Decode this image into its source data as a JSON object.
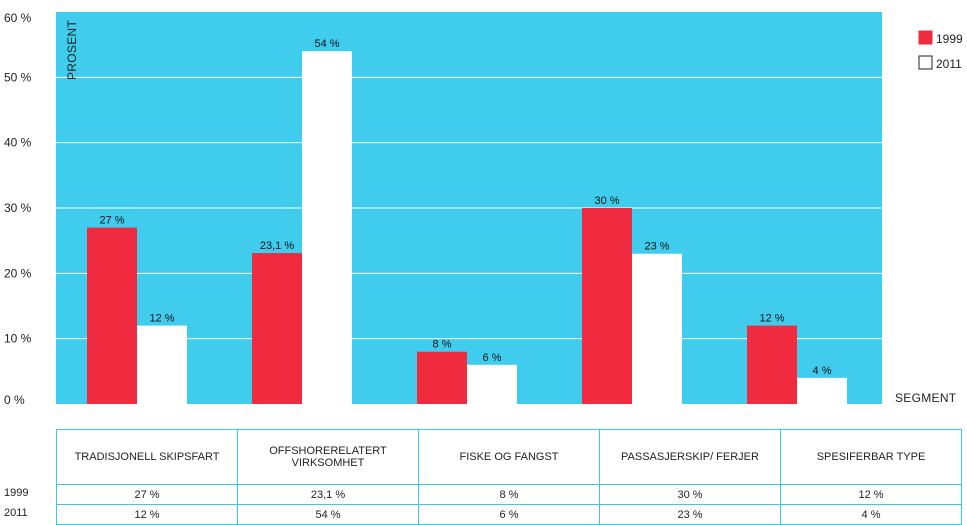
{
  "colors": {
    "plot_bg": "#40ccec",
    "bar_1999": "#f02a3f",
    "bar_2011": "#ffffff",
    "grid": "#ffffff",
    "table_border": "#3ec8e8"
  },
  "chart_data": {
    "type": "bar",
    "ylabel": "PROSENT",
    "xlabel": "SEGMENT",
    "ylim": [
      0,
      60
    ],
    "y_ticks": [
      0,
      10,
      20,
      30,
      40,
      50,
      60
    ],
    "y_tick_labels": [
      "0 %",
      "10 %",
      "20 %",
      "30 %",
      "40 %",
      "50 %",
      "60 %"
    ],
    "grid": true,
    "legend_position": "top-right",
    "categories": [
      "TRADISJONELL SKIPSFART",
      "OFFSHORERELATERT VIRKSOMHET",
      "FISKE OG FANGST",
      "PASSASJERSKIP/ FERJER",
      "SPESIFERBAR TYPE"
    ],
    "series": [
      {
        "name": "1999",
        "values": [
          27,
          23.1,
          8,
          30,
          12
        ],
        "labels": [
          "27 %",
          "23,1 %",
          "8 %",
          "30 %",
          "12 %"
        ]
      },
      {
        "name": "2011",
        "values": [
          12,
          54,
          6,
          23,
          4
        ],
        "labels": [
          "12 %",
          "54 %",
          "6 %",
          "23 %",
          "4 %"
        ]
      }
    ]
  },
  "table": {
    "headers": [
      [
        "TRADISJONELL SKIPSFART"
      ],
      [
        "OFFSHORERELATERT",
        "VIRKSOMHET"
      ],
      [
        "FISKE OG FANGST"
      ],
      [
        "PASSASJERSKIP/ FERJER"
      ],
      [
        "SPESIFERBAR TYPE"
      ]
    ],
    "rows": [
      {
        "label": "1999",
        "cells": [
          "27 %",
          "23,1 %",
          "8 %",
          "30 %",
          "12 %"
        ]
      },
      {
        "label": "2011",
        "cells": [
          "12 %",
          "54 %",
          "6 %",
          "23 %",
          "4 %"
        ]
      }
    ]
  }
}
